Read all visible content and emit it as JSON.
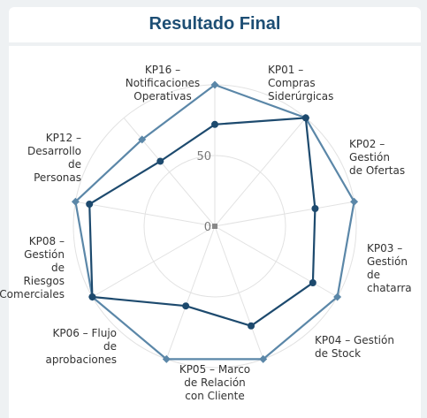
{
  "title": "Resultado Final",
  "chart_data": {
    "type": "radar",
    "axes": [
      {
        "lines": [
          "KP01 –",
          "Compras",
          "Siderúrgicas"
        ]
      },
      {
        "lines": [
          "KP02 –",
          "Gestión",
          "de Ofertas"
        ]
      },
      {
        "lines": [
          "KP03 –",
          "Gestión",
          "de",
          "chatarra"
        ]
      },
      {
        "lines": [
          "KP04 – Gestión",
          "de Stock"
        ]
      },
      {
        "lines": [
          "KP05 – Marco",
          "de Relación",
          "con Cliente"
        ]
      },
      {
        "lines": [
          "KP06 – Flujo",
          "de",
          "aprobaciones"
        ]
      },
      {
        "lines": [
          "KP08 –",
          "Gestión",
          "de",
          "Riesgos",
          "Comerciales"
        ]
      },
      {
        "lines": [
          "KP12 –",
          "Desarrollo",
          "de",
          "Personas"
        ]
      },
      {
        "lines": [
          "KP16 –",
          "Notificaciones",
          "Operativas"
        ]
      }
    ],
    "ticks": [
      "0",
      "50"
    ],
    "rmax": 100,
    "series": [
      {
        "color": "#5b87a8",
        "marker": "diamond",
        "values": [
          100,
          100,
          100,
          100,
          100,
          100,
          100,
          100,
          80
        ]
      },
      {
        "color": "#1d4a6e",
        "marker": "circle",
        "values": [
          72,
          100,
          72,
          80,
          75,
          60,
          100,
          90,
          60
        ]
      }
    ],
    "grid": true,
    "legend": "none"
  }
}
